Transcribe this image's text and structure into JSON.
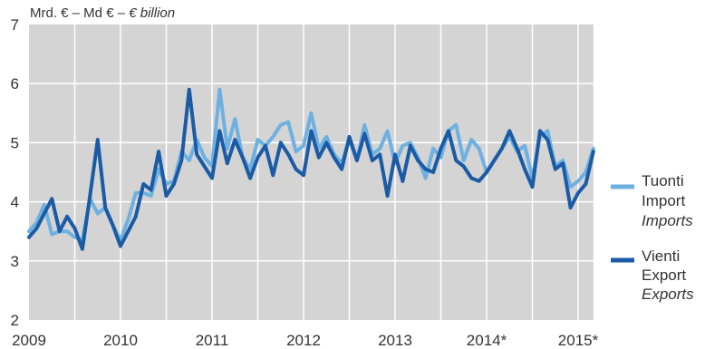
{
  "colors": {
    "plot_background": "#d4d4d4",
    "gridline": "#ffffff"
  },
  "chart_data": {
    "type": "line",
    "ylabel": [
      "Mrd. € – Md € –",
      "€ billion"
    ],
    "ylim": [
      2,
      7
    ],
    "yticks": [
      2,
      3,
      4,
      5,
      6,
      7
    ],
    "xlim": [
      "2009-01",
      "2015-03"
    ],
    "xticks": [
      "2009",
      "2010",
      "2011",
      "2012",
      "2013",
      "2014*",
      "2015*"
    ],
    "grid": true,
    "legend_position": "right",
    "x": [
      "2009-01",
      "2009-02",
      "2009-03",
      "2009-04",
      "2009-05",
      "2009-06",
      "2009-07",
      "2009-08",
      "2009-09",
      "2009-10",
      "2009-11",
      "2009-12",
      "2010-01",
      "2010-02",
      "2010-03",
      "2010-04",
      "2010-05",
      "2010-06",
      "2010-07",
      "2010-08",
      "2010-09",
      "2010-10",
      "2010-11",
      "2010-12",
      "2011-01",
      "2011-02",
      "2011-03",
      "2011-04",
      "2011-05",
      "2011-06",
      "2011-07",
      "2011-08",
      "2011-09",
      "2011-10",
      "2011-11",
      "2011-12",
      "2012-01",
      "2012-02",
      "2012-03",
      "2012-04",
      "2012-05",
      "2012-06",
      "2012-07",
      "2012-08",
      "2012-09",
      "2012-10",
      "2012-11",
      "2012-12",
      "2013-01",
      "2013-02",
      "2013-03",
      "2013-04",
      "2013-05",
      "2013-06",
      "2013-07",
      "2013-08",
      "2013-09",
      "2013-10",
      "2013-11",
      "2013-12",
      "2014-01",
      "2014-02",
      "2014-03",
      "2014-04",
      "2014-05",
      "2014-06",
      "2014-07",
      "2014-08",
      "2014-09",
      "2014-10",
      "2014-11",
      "2014-12",
      "2015-01",
      "2015-02",
      "2015-03"
    ],
    "series": [
      {
        "name": [
          "Tuonti",
          "Import",
          "Imports"
        ],
        "color": "#6eb1e1",
        "values": [
          3.5,
          3.65,
          3.95,
          3.45,
          3.5,
          3.5,
          3.4,
          3.35,
          4.05,
          3.8,
          3.9,
          3.6,
          3.35,
          3.7,
          4.15,
          4.15,
          4.1,
          4.55,
          4.3,
          4.35,
          4.85,
          4.7,
          5.05,
          4.75,
          4.6,
          5.9,
          4.9,
          5.4,
          4.75,
          4.55,
          5.05,
          4.95,
          5.1,
          5.3,
          5.35,
          4.85,
          4.95,
          5.5,
          4.9,
          5.1,
          4.8,
          4.65,
          5.05,
          4.7,
          5.3,
          4.8,
          4.9,
          5.2,
          4.65,
          4.95,
          5.0,
          4.75,
          4.4,
          4.9,
          4.75,
          5.2,
          5.3,
          4.7,
          5.05,
          4.9,
          4.5,
          4.7,
          4.9,
          5.1,
          4.85,
          4.95,
          4.4,
          5.1,
          5.2,
          4.6,
          4.7,
          4.25,
          4.35,
          4.5,
          4.9
        ]
      },
      {
        "name": [
          "Vienti",
          "Export",
          "Exports"
        ],
        "color": "#1b5ba6",
        "values": [
          3.4,
          3.55,
          3.8,
          4.05,
          3.5,
          3.75,
          3.55,
          3.2,
          4.1,
          5.05,
          3.9,
          3.6,
          3.25,
          3.5,
          3.75,
          4.3,
          4.2,
          4.85,
          4.1,
          4.3,
          4.7,
          5.9,
          4.8,
          4.6,
          4.4,
          5.2,
          4.65,
          5.05,
          4.75,
          4.4,
          4.75,
          4.95,
          4.45,
          5.0,
          4.8,
          4.55,
          4.45,
          5.2,
          4.75,
          5.0,
          4.75,
          4.55,
          5.1,
          4.7,
          5.15,
          4.7,
          4.8,
          4.1,
          4.8,
          4.35,
          4.95,
          4.7,
          4.55,
          4.5,
          4.9,
          5.2,
          4.7,
          4.6,
          4.4,
          4.35,
          4.5,
          4.7,
          4.9,
          5.2,
          4.9,
          4.55,
          4.25,
          5.2,
          5.05,
          4.55,
          4.65,
          3.9,
          4.15,
          4.3,
          4.85
        ]
      }
    ]
  }
}
